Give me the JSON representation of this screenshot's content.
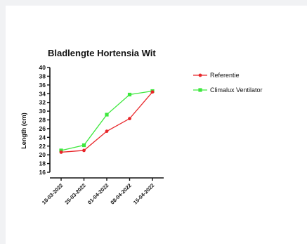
{
  "chart_data": {
    "type": "line",
    "title": "Bladlengte Hortensia Wit",
    "xlabel": "",
    "ylabel": "Length (cm)",
    "categories": [
      "18-03-2022",
      "25-03-2022",
      "01-04-2022",
      "08-04-2022",
      "15-04-2022"
    ],
    "ylim": [
      16,
      40
    ],
    "yticks": [
      16,
      18,
      20,
      22,
      24,
      26,
      28,
      30,
      32,
      34,
      36,
      38,
      40
    ],
    "grid": false,
    "legend_position": "top-right",
    "series": [
      {
        "name": "Referentie",
        "color": "#e8262a",
        "values": [
          20.6,
          21.0,
          25.4,
          28.3,
          34.4
        ]
      },
      {
        "name": "Climalux Ventilator",
        "color": "#3ee83e",
        "values": [
          21.0,
          22.2,
          29.2,
          33.8,
          34.6
        ]
      }
    ]
  }
}
